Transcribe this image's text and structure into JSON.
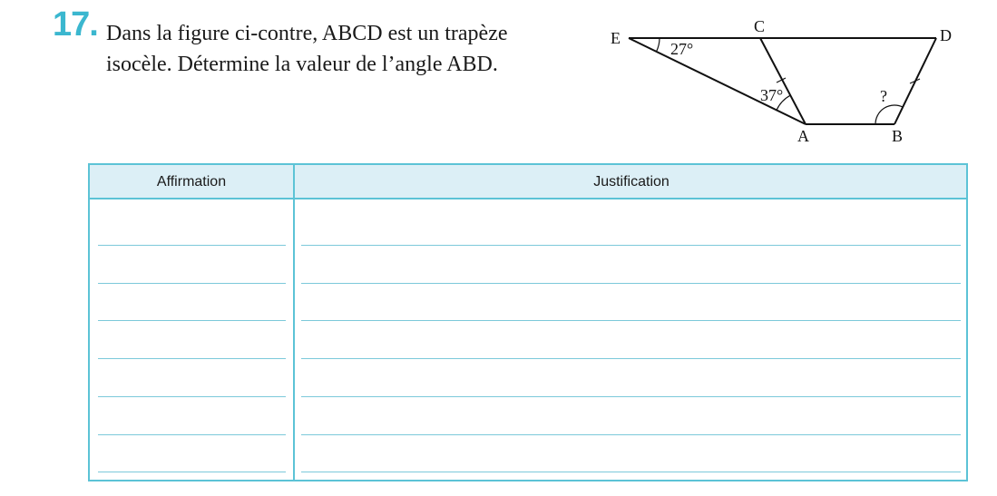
{
  "exercise": {
    "number": "17.",
    "statement_line1": "Dans la figure ci-contre, ABCD est un trapèze",
    "statement_line2": "isocèle. Détermine la valeur de l’angle ABD."
  },
  "figure": {
    "points": {
      "E": "E",
      "C": "C",
      "D": "D",
      "A": "A",
      "B": "B"
    },
    "angle_E": "27°",
    "angle_A": "37°",
    "angle_B": "?"
  },
  "table": {
    "header_left": "Affirmation",
    "header_right": "Justification",
    "answer_lines": 7
  },
  "colors": {
    "accent": "#3bb7cf",
    "table_border": "#5cc3d6",
    "header_fill": "#dceff6",
    "answer_line": "#7cc9da"
  }
}
